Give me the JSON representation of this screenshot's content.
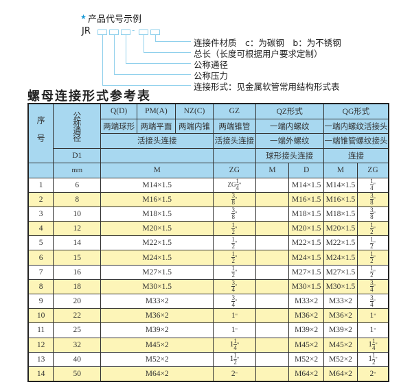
{
  "code_example": {
    "star_icon": "star-icon",
    "title": "产品代号示例",
    "prefix": "JR",
    "separator": "-",
    "labels": [
      "连接件材质　c：为碳钢　b：为不锈钢",
      "总长（长度可根据用户要求定制）",
      "公称通径",
      "公称压力",
      "连接形式：见金属软管常用结构形式表"
    ]
  },
  "table_title": "螺母连接形式参考表",
  "table": {
    "header": {
      "seq": "序号",
      "nominal": "公称通径",
      "qd": "Q(D)",
      "pm": "PM(A)",
      "nz": "NZ(C)",
      "gz": "GZ",
      "qz": "QZ形式",
      "qg": "QG形式",
      "qd_desc": "两端球形",
      "pm_desc": "两端平面",
      "nz_desc": "两端内锥",
      "gz_desc": "两端锥管",
      "qz_desc1": "一端内螺纹",
      "qg_desc1": "一端内螺纹活接头",
      "union": "活接头连接",
      "gz_union": "活接头连接",
      "qz_desc2": "一端外螺纹",
      "qg_desc2": "一端锥管螺纹接头",
      "d1": "D1",
      "qz_desc3": "球形接头连接",
      "qg_desc3": "连接",
      "mm": "mm",
      "m": "M",
      "zg": "ZG",
      "qz_m": "M",
      "qz_d": "D",
      "qg_m": "M",
      "qg_zg": "ZG"
    },
    "rows": [
      {
        "no": "1",
        "d1": "6",
        "m": "M14×1.5",
        "zg": {
          "pre": "ZG",
          "whole": "",
          "num": "1",
          "den": "4"
        },
        "qz_m": "",
        "qz_d": "M14×1.5",
        "qg_m": "M14×1.5",
        "qg_zg": {
          "whole": "",
          "num": "1",
          "den": "4"
        }
      },
      {
        "no": "2",
        "d1": "8",
        "m": "M16×1.5",
        "zg": {
          "pre": "",
          "whole": "",
          "num": "3",
          "den": "8"
        },
        "qz_m": "",
        "qz_d": "M16×1.5",
        "qg_m": "M16×1.5",
        "qg_zg": {
          "whole": "",
          "num": "3",
          "den": "8"
        }
      },
      {
        "no": "3",
        "d1": "10",
        "m": "M18×1.5",
        "zg": {
          "pre": "",
          "whole": "",
          "num": "3",
          "den": "8"
        },
        "qz_m": "",
        "qz_d": "M18×1.5",
        "qg_m": "M18×1.5",
        "qg_zg": {
          "whole": "",
          "num": "3",
          "den": "8"
        }
      },
      {
        "no": "4",
        "d1": "12",
        "m": "M20×1.5",
        "zg": {
          "pre": "",
          "whole": "",
          "num": "1",
          "den": "2"
        },
        "qz_m": "",
        "qz_d": "M20×1.5",
        "qg_m": "M20×1.5",
        "qg_zg": {
          "whole": "",
          "num": "1",
          "den": "2"
        }
      },
      {
        "no": "5",
        "d1": "14",
        "m": "M22×1.5",
        "zg": {
          "pre": "",
          "whole": "",
          "num": "1",
          "den": "2"
        },
        "qz_m": "",
        "qz_d": "M22×1.5",
        "qg_m": "M22×1.5",
        "qg_zg": {
          "whole": "",
          "num": "1",
          "den": "2"
        }
      },
      {
        "no": "6",
        "d1": "15",
        "m": "M24×1.5",
        "zg": {
          "pre": "",
          "whole": "",
          "num": "1",
          "den": "2"
        },
        "qz_m": "",
        "qz_d": "M24×1.5",
        "qg_m": "M24×1.5",
        "qg_zg": {
          "whole": "",
          "num": "1",
          "den": "2"
        }
      },
      {
        "no": "7",
        "d1": "16",
        "m": "M27×1.5",
        "zg": {
          "pre": "",
          "whole": "",
          "num": "1",
          "den": "2"
        },
        "qz_m": "",
        "qz_d": "M27×1.5",
        "qg_m": "M27×1.5",
        "qg_zg": {
          "whole": "",
          "num": "1",
          "den": "2"
        }
      },
      {
        "no": "8",
        "d1": "18",
        "m": "M30×1.5",
        "zg": {
          "pre": "",
          "whole": "",
          "num": "3",
          "den": "4"
        },
        "qz_m": "",
        "qz_d": "M30×1.5",
        "qg_m": "M30×1.5",
        "qg_zg": {
          "whole": "",
          "num": "3",
          "den": "4"
        }
      },
      {
        "no": "9",
        "d1": "20",
        "m": "M33×2",
        "zg": {
          "pre": "",
          "whole": "",
          "num": "3",
          "den": "4"
        },
        "qz_m": "",
        "qz_d": "M33×2",
        "qg_m": "M33×2",
        "qg_zg": {
          "whole": "",
          "num": "3",
          "den": "4"
        }
      },
      {
        "no": "10",
        "d1": "22",
        "m": "M36×2",
        "zg": {
          "pre": "",
          "whole": "1",
          "num": "",
          "den": ""
        },
        "qz_m": "",
        "qz_d": "M36×2",
        "qg_m": "M36×2",
        "qg_zg": {
          "whole": "1",
          "num": "",
          "den": ""
        }
      },
      {
        "no": "11",
        "d1": "25",
        "m": "M39×2",
        "zg": {
          "pre": "",
          "whole": "1",
          "num": "",
          "den": ""
        },
        "qz_m": "",
        "qz_d": "M39×2",
        "qg_m": "M39×2",
        "qg_zg": {
          "whole": "1",
          "num": "",
          "den": ""
        }
      },
      {
        "no": "12",
        "d1": "32",
        "m": "M45×2",
        "zg": {
          "pre": "",
          "whole": "1",
          "num": "1",
          "den": "4"
        },
        "qz_m": "",
        "qz_d": "M45×2",
        "qg_m": "M45×2",
        "qg_zg": {
          "whole": "1",
          "num": "1",
          "den": "4"
        }
      },
      {
        "no": "13",
        "d1": "40",
        "m": "M52×2",
        "zg": {
          "pre": "",
          "whole": "1",
          "num": "1",
          "den": "2"
        },
        "qz_m": "",
        "qz_d": "M52×2",
        "qg_m": "M52×2",
        "qg_zg": {
          "whole": "1",
          "num": "1",
          "den": "2"
        }
      },
      {
        "no": "14",
        "d1": "50",
        "m": "M64×2",
        "zg": {
          "pre": "",
          "whole": "2",
          "num": "",
          "den": ""
        },
        "qz_m": "",
        "qz_d": "M64×2",
        "qg_m": "M64×2",
        "qg_zg": {
          "whole": "2",
          "num": "",
          "den": ""
        }
      }
    ],
    "colors": {
      "header_bg": "#a8d8f0",
      "stripe_bg": "#fdf5b8"
    }
  }
}
